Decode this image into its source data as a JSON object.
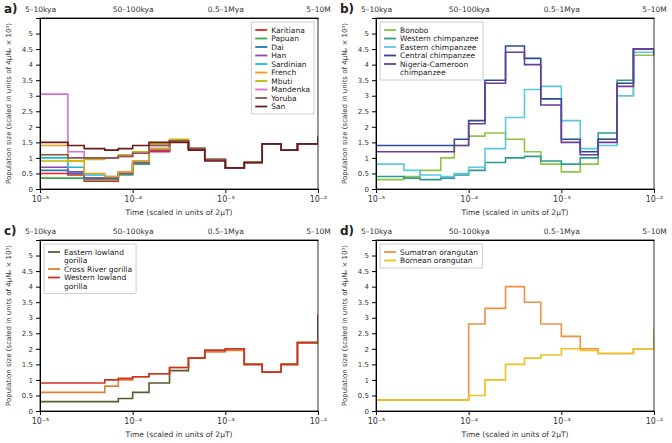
{
  "chart_data": [
    {
      "type": "line",
      "title": "a)",
      "x_label": "Time (scaled in units of 2μT)",
      "y_label": "Population size (scaled in units of 4μNₑ × 10³)",
      "log": "x",
      "grid": false,
      "legend": "top-right",
      "line_style": "step",
      "xlim": [
        1e-05,
        0.01
      ],
      "ylim": [
        0,
        5.5
      ],
      "xticks": [
        {
          "value": 1e-05,
          "label": "10⁻⁵"
        },
        {
          "value": 0.0001,
          "label": "10⁻⁴"
        },
        {
          "value": 0.001,
          "label": "10⁻³"
        },
        {
          "value": 0.01,
          "label": "10⁻²"
        }
      ],
      "x2ticks": [
        {
          "value": 1e-05,
          "label": "5–10kya"
        },
        {
          "value": 0.0001,
          "label": "50–100kya"
        },
        {
          "value": 0.001,
          "label": "0.5–1Mya"
        },
        {
          "value": 0.01,
          "label": "5–10M"
        }
      ],
      "yticks": [
        0,
        0.5,
        1,
        1.5,
        2,
        2.5,
        3,
        3.5,
        4,
        4.5,
        5
      ],
      "x": [
        1e-05,
        2e-05,
        3e-05,
        5e-05,
        7e-05,
        0.0001,
        0.00015,
        0.00025,
        0.0004,
        0.0006,
        0.001,
        0.0016,
        0.0025,
        0.004,
        0.006,
        0.01
      ],
      "series": [
        {
          "name": "Karitiana",
          "color": "#e4231f",
          "values": [
            0.5,
            0.45,
            0.25,
            0.25,
            0.5,
            0.8,
            1.2,
            1.55,
            1.3,
            0.95,
            0.68,
            0.85,
            1.45,
            1.25,
            1.45,
            1.7
          ]
        },
        {
          "name": "Papuan",
          "color": "#3aa845",
          "values": [
            0.35,
            0.35,
            0.3,
            0.3,
            0.45,
            0.8,
            1.25,
            1.55,
            1.3,
            0.95,
            0.68,
            0.85,
            1.45,
            1.25,
            1.45,
            1.7
          ]
        },
        {
          "name": "Dai",
          "color": "#1f78b4",
          "values": [
            0.6,
            0.5,
            0.35,
            0.35,
            0.5,
            0.85,
            1.25,
            1.55,
            1.3,
            0.95,
            0.68,
            0.85,
            1.45,
            1.25,
            1.45,
            1.7
          ]
        },
        {
          "name": "Han",
          "color": "#8e44ad",
          "values": [
            0.7,
            0.55,
            0.35,
            0.35,
            0.5,
            0.85,
            1.25,
            1.55,
            1.3,
            0.95,
            0.68,
            0.85,
            1.45,
            1.25,
            1.45,
            1.7
          ]
        },
        {
          "name": "Sardinian",
          "color": "#17becf",
          "values": [
            1.0,
            0.7,
            0.45,
            0.4,
            0.55,
            0.9,
            1.3,
            1.55,
            1.3,
            0.95,
            0.68,
            0.85,
            1.45,
            1.25,
            1.45,
            1.7
          ]
        },
        {
          "name": "French",
          "color": "#f39c12",
          "values": [
            1.4,
            0.9,
            0.5,
            0.4,
            0.55,
            0.9,
            1.3,
            1.55,
            1.3,
            0.95,
            0.68,
            0.85,
            1.45,
            1.25,
            1.45,
            1.7
          ]
        },
        {
          "name": "Mbuti",
          "color": "#c8b400",
          "values": [
            0.9,
            0.9,
            0.95,
            1.0,
            1.1,
            1.2,
            1.45,
            1.6,
            1.3,
            0.95,
            0.68,
            0.85,
            1.45,
            1.25,
            1.45,
            1.7
          ]
        },
        {
          "name": "Mandenka",
          "color": "#d86fd8",
          "values": [
            3.05,
            1.2,
            1.0,
            1.0,
            1.05,
            1.15,
            1.4,
            1.55,
            1.3,
            0.95,
            0.68,
            0.85,
            1.45,
            1.25,
            1.45,
            1.7
          ]
        },
        {
          "name": "Yoruba",
          "color": "#8c564b",
          "values": [
            1.1,
            1.0,
            1.0,
            1.0,
            1.05,
            1.15,
            1.4,
            1.55,
            1.3,
            0.95,
            0.68,
            0.85,
            1.45,
            1.25,
            1.45,
            1.7
          ]
        },
        {
          "name": "San",
          "color": "#6b1a1a",
          "values": [
            1.5,
            1.4,
            1.3,
            1.25,
            1.3,
            1.4,
            1.5,
            1.5,
            1.25,
            0.9,
            0.68,
            0.85,
            1.45,
            1.25,
            1.45,
            1.7
          ]
        }
      ]
    },
    {
      "type": "line",
      "title": "b)",
      "x_label": "Time (scaled in units of 2μT)",
      "y_label": "Population size (scaled in units of 4μNₑ × 10³)",
      "log": "x",
      "grid": false,
      "legend": "top-left",
      "line_style": "step",
      "xlim": [
        1e-05,
        0.01
      ],
      "ylim": [
        0,
        5.5
      ],
      "xticks": [
        {
          "value": 1e-05,
          "label": "10⁻⁵"
        },
        {
          "value": 0.0001,
          "label": "10⁻⁴"
        },
        {
          "value": 0.001,
          "label": "10⁻³"
        },
        {
          "value": 0.01,
          "label": "10⁻²"
        }
      ],
      "x2ticks": [
        {
          "value": 1e-05,
          "label": "5–10kya"
        },
        {
          "value": 0.0001,
          "label": "50–100kya"
        },
        {
          "value": 0.001,
          "label": "0.5–1Mya"
        },
        {
          "value": 0.01,
          "label": "5–10M"
        }
      ],
      "yticks": [
        0,
        0.5,
        1,
        1.5,
        2,
        2.5,
        3,
        3.5,
        4,
        4.5,
        5
      ],
      "x": [
        1e-05,
        2e-05,
        3e-05,
        5e-05,
        7e-05,
        0.0001,
        0.00015,
        0.00025,
        0.0004,
        0.0006,
        0.001,
        0.0016,
        0.0025,
        0.004,
        0.006,
        0.01
      ],
      "series": [
        {
          "name": "Bonobo",
          "color": "#8dc63f",
          "values": [
            0.3,
            0.4,
            0.6,
            1.0,
            1.4,
            1.7,
            1.8,
            1.6,
            1.2,
            0.8,
            0.55,
            0.8,
            1.6,
            3.0,
            4.3,
            4.3
          ]
        },
        {
          "name": "Western chimpanzee",
          "color": "#2a9d8f",
          "values": [
            0.4,
            0.35,
            0.3,
            0.35,
            0.45,
            0.6,
            0.85,
            1.0,
            1.05,
            0.9,
            0.8,
            1.0,
            1.8,
            3.5,
            4.5,
            4.3
          ]
        },
        {
          "name": "Eastern chimpanzee",
          "color": "#5cc8e0",
          "values": [
            0.8,
            0.6,
            0.45,
            0.4,
            0.5,
            0.7,
            1.3,
            2.3,
            3.2,
            3.3,
            2.2,
            1.3,
            1.4,
            3.0,
            4.4,
            4.3
          ]
        },
        {
          "name": "Central chimpanzee",
          "color": "#2a4a9a",
          "values": [
            1.4,
            1.4,
            1.4,
            1.4,
            1.6,
            2.2,
            3.5,
            4.6,
            4.2,
            2.9,
            1.6,
            1.2,
            1.6,
            3.4,
            4.5,
            4.3
          ]
        },
        {
          "name": "Nigeria-Cameroon chimpanzee",
          "color": "#6a3d9a",
          "values": [
            1.2,
            1.2,
            1.2,
            1.2,
            1.4,
            2.1,
            3.4,
            4.4,
            4.0,
            2.7,
            1.5,
            1.1,
            1.5,
            3.3,
            4.5,
            4.3
          ]
        }
      ]
    },
    {
      "type": "line",
      "title": "c)",
      "x_label": "Time (scaled in units of 2μT)",
      "y_label": "Population size (scaled in units of 4μNₑ × 10³)",
      "log": "x",
      "grid": false,
      "legend": "top-left",
      "line_style": "step",
      "xlim": [
        1e-05,
        0.01
      ],
      "ylim": [
        0,
        5.5
      ],
      "xticks": [
        {
          "value": 1e-05,
          "label": "10⁻⁵"
        },
        {
          "value": 0.0001,
          "label": "10⁻⁴"
        },
        {
          "value": 0.001,
          "label": "10⁻³"
        },
        {
          "value": 0.01,
          "label": "10⁻²"
        }
      ],
      "x2ticks": [
        {
          "value": 1e-05,
          "label": "5–10kya"
        },
        {
          "value": 0.0001,
          "label": "50–100kya"
        },
        {
          "value": 0.001,
          "label": "0.5–1Mya"
        },
        {
          "value": 0.01,
          "label": "5–10M"
        }
      ],
      "yticks": [
        0,
        0.5,
        1,
        1.5,
        2,
        2.5,
        3,
        3.5,
        4,
        4.5,
        5
      ],
      "x": [
        1e-05,
        2e-05,
        3e-05,
        5e-05,
        7e-05,
        0.0001,
        0.00015,
        0.00025,
        0.0004,
        0.0006,
        0.001,
        0.0016,
        0.0025,
        0.004,
        0.006,
        0.01
      ],
      "series": [
        {
          "name": "Eastern lowland gorilla",
          "color": "#5a5a30",
          "values": [
            0.3,
            0.3,
            0.3,
            0.3,
            0.4,
            0.6,
            0.9,
            1.3,
            1.7,
            1.95,
            2.0,
            1.5,
            1.25,
            1.5,
            2.2,
            3.0
          ]
        },
        {
          "name": "Cross River gorilla",
          "color": "#e08030",
          "values": [
            0.6,
            0.6,
            0.6,
            0.8,
            1.0,
            1.1,
            1.2,
            1.4,
            1.7,
            1.9,
            1.95,
            1.5,
            1.25,
            1.5,
            2.2,
            3.1
          ]
        },
        {
          "name": "Western lowland gorilla",
          "color": "#d03020",
          "values": [
            0.9,
            0.9,
            0.9,
            1.0,
            1.05,
            1.1,
            1.2,
            1.4,
            1.7,
            1.95,
            2.0,
            1.5,
            1.25,
            1.5,
            2.2,
            3.1
          ]
        }
      ]
    },
    {
      "type": "line",
      "title": "d)",
      "x_label": "Time (scaled in units of 2μT)",
      "y_label": "Population size (scaled in units of 4μNₑ × 10³)",
      "log": "x",
      "grid": false,
      "legend": "top-left",
      "line_style": "step",
      "xlim": [
        1e-05,
        0.01
      ],
      "ylim": [
        0,
        5.5
      ],
      "xticks": [
        {
          "value": 1e-05,
          "label": "10⁻⁵"
        },
        {
          "value": 0.0001,
          "label": "10⁻⁴"
        },
        {
          "value": 0.001,
          "label": "10⁻³"
        },
        {
          "value": 0.01,
          "label": "10⁻²"
        }
      ],
      "x2ticks": [
        {
          "value": 1e-05,
          "label": "5–10kya"
        },
        {
          "value": 0.0001,
          "label": "50–100kya"
        },
        {
          "value": 0.001,
          "label": "0.5–1Mya"
        },
        {
          "value": 0.01,
          "label": "5–10M"
        }
      ],
      "yticks": [
        0,
        0.5,
        1,
        1.5,
        2,
        2.5,
        3,
        3.5,
        4,
        4.5,
        5
      ],
      "x": [
        1e-05,
        2e-05,
        3e-05,
        5e-05,
        7e-05,
        0.0001,
        0.00015,
        0.00025,
        0.0004,
        0.0006,
        0.001,
        0.0016,
        0.0025,
        0.004,
        0.006,
        0.01
      ],
      "series": [
        {
          "name": "Sumatran orangutan",
          "color": "#f09040",
          "values": [
            0.35,
            0.35,
            0.35,
            0.35,
            0.35,
            2.8,
            3.3,
            4.0,
            3.5,
            2.8,
            2.4,
            2.0,
            1.85,
            1.85,
            2.0,
            2.6
          ]
        },
        {
          "name": "Bornean orangutan",
          "color": "#f0c020",
          "values": [
            0.35,
            0.35,
            0.35,
            0.35,
            0.35,
            0.5,
            1.0,
            1.5,
            1.7,
            1.8,
            2.0,
            1.95,
            1.85,
            1.85,
            2.0,
            2.7
          ]
        }
      ]
    }
  ]
}
